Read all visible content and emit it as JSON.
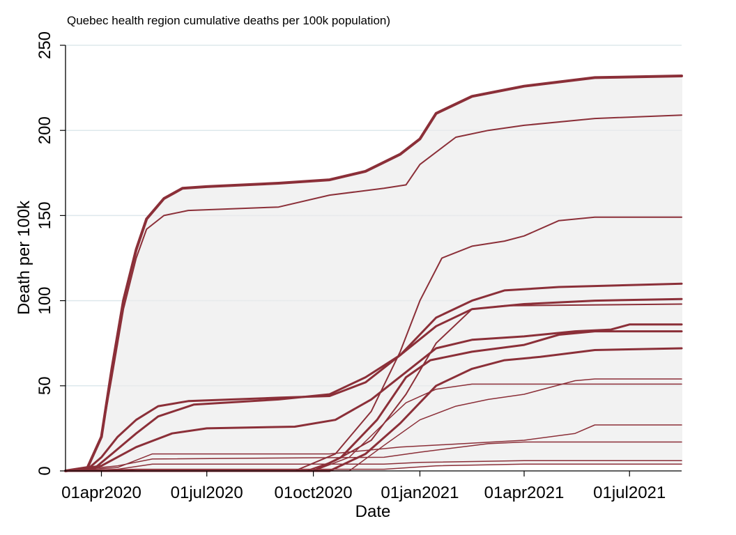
{
  "chart_data": {
    "type": "line",
    "title": "Quebec health region cumulative deaths per 100k population)",
    "xlabel": "Date",
    "ylabel": "Death per 100k",
    "ylim": [
      0,
      250
    ],
    "xlim": [
      "2020-03-01",
      "2021-08-15"
    ],
    "grid": true,
    "legend": "none",
    "colors": {
      "line": "#8b2f38",
      "band": "#ececec",
      "grid": "#dde8ec"
    },
    "y_ticks": [
      0,
      50,
      100,
      150,
      200,
      250
    ],
    "x_ticks": [
      {
        "date": "2020-04-01",
        "label": "01apr2020"
      },
      {
        "date": "2020-07-01",
        "label": "01jul2020"
      },
      {
        "date": "2020-10-01",
        "label": "01oct2020"
      },
      {
        "date": "2021-01-01",
        "label": "01jan2021"
      },
      {
        "date": "2021-04-01",
        "label": "01apr2021"
      },
      {
        "date": "2021-07-01",
        "label": "01jul2021"
      }
    ],
    "series": [
      {
        "weight": 4,
        "values": [
          [
            "2020-03-01",
            0
          ],
          [
            "2020-03-20",
            2
          ],
          [
            "2020-04-01",
            20
          ],
          [
            "2020-04-10",
            60
          ],
          [
            "2020-04-20",
            100
          ],
          [
            "2020-05-01",
            130
          ],
          [
            "2020-05-10",
            148
          ],
          [
            "2020-05-25",
            160
          ],
          [
            "2020-06-10",
            166
          ],
          [
            "2020-07-01",
            167
          ],
          [
            "2020-09-01",
            169
          ],
          [
            "2020-10-15",
            171
          ],
          [
            "2020-11-15",
            176
          ],
          [
            "2020-12-15",
            186
          ],
          [
            "2021-01-01",
            195
          ],
          [
            "2021-01-15",
            210
          ],
          [
            "2021-02-15",
            220
          ],
          [
            "2021-04-01",
            226
          ],
          [
            "2021-06-01",
            231
          ],
          [
            "2021-08-15",
            232
          ]
        ]
      },
      {
        "weight": 2,
        "values": [
          [
            "2020-03-01",
            0
          ],
          [
            "2020-03-20",
            2
          ],
          [
            "2020-04-01",
            20
          ],
          [
            "2020-04-10",
            55
          ],
          [
            "2020-04-20",
            95
          ],
          [
            "2020-05-01",
            125
          ],
          [
            "2020-05-10",
            142
          ],
          [
            "2020-05-25",
            150
          ],
          [
            "2020-06-15",
            153
          ],
          [
            "2020-09-01",
            155
          ],
          [
            "2020-10-15",
            162
          ],
          [
            "2020-12-01",
            166
          ],
          [
            "2020-12-20",
            168
          ],
          [
            "2021-01-01",
            180
          ],
          [
            "2021-02-01",
            196
          ],
          [
            "2021-03-01",
            200
          ],
          [
            "2021-04-01",
            203
          ],
          [
            "2021-06-01",
            207
          ],
          [
            "2021-08-15",
            209
          ]
        ]
      },
      {
        "weight": 2,
        "values": [
          [
            "2020-03-01",
            0
          ],
          [
            "2020-09-15",
            0
          ],
          [
            "2020-10-20",
            10
          ],
          [
            "2020-11-20",
            35
          ],
          [
            "2020-12-15",
            70
          ],
          [
            "2021-01-01",
            100
          ],
          [
            "2021-01-20",
            125
          ],
          [
            "2021-02-15",
            132
          ],
          [
            "2021-03-15",
            135
          ],
          [
            "2021-04-01",
            138
          ],
          [
            "2021-05-01",
            147
          ],
          [
            "2021-06-01",
            149
          ],
          [
            "2021-08-15",
            149
          ]
        ]
      },
      {
        "weight": 3,
        "values": [
          [
            "2020-03-01",
            0
          ],
          [
            "2020-03-20",
            1
          ],
          [
            "2020-04-01",
            8
          ],
          [
            "2020-04-15",
            20
          ],
          [
            "2020-05-01",
            30
          ],
          [
            "2020-05-20",
            38
          ],
          [
            "2020-06-15",
            41
          ],
          [
            "2020-09-01",
            43
          ],
          [
            "2020-10-15",
            44
          ],
          [
            "2020-11-15",
            52
          ],
          [
            "2020-12-15",
            68
          ],
          [
            "2021-01-15",
            90
          ],
          [
            "2021-02-15",
            100
          ],
          [
            "2021-03-15",
            106
          ],
          [
            "2021-05-01",
            108
          ],
          [
            "2021-08-15",
            110
          ]
        ]
      },
      {
        "weight": 3,
        "values": [
          [
            "2020-03-01",
            0
          ],
          [
            "2020-03-25",
            1
          ],
          [
            "2020-04-10",
            10
          ],
          [
            "2020-05-01",
            22
          ],
          [
            "2020-05-20",
            32
          ],
          [
            "2020-06-20",
            39
          ],
          [
            "2020-09-01",
            42
          ],
          [
            "2020-10-15",
            45
          ],
          [
            "2020-11-15",
            55
          ],
          [
            "2020-12-15",
            68
          ],
          [
            "2021-01-15",
            85
          ],
          [
            "2021-02-15",
            95
          ],
          [
            "2021-04-01",
            98
          ],
          [
            "2021-06-01",
            100
          ],
          [
            "2021-08-15",
            101
          ]
        ]
      },
      {
        "weight": 2,
        "values": [
          [
            "2020-03-01",
            0
          ],
          [
            "2020-09-25",
            0
          ],
          [
            "2020-10-20",
            6
          ],
          [
            "2020-11-20",
            18
          ],
          [
            "2020-12-20",
            45
          ],
          [
            "2021-01-15",
            75
          ],
          [
            "2021-02-15",
            95
          ],
          [
            "2021-03-15",
            97
          ],
          [
            "2021-08-15",
            98
          ]
        ]
      },
      {
        "weight": 3,
        "values": [
          [
            "2020-03-01",
            0
          ],
          [
            "2020-04-01",
            3
          ],
          [
            "2020-05-01",
            14
          ],
          [
            "2020-06-01",
            22
          ],
          [
            "2020-07-01",
            25
          ],
          [
            "2020-09-15",
            26
          ],
          [
            "2020-10-20",
            30
          ],
          [
            "2020-11-20",
            42
          ],
          [
            "2020-12-20",
            58
          ],
          [
            "2021-01-15",
            72
          ],
          [
            "2021-02-15",
            77
          ],
          [
            "2021-04-01",
            79
          ],
          [
            "2021-05-15",
            82
          ],
          [
            "2021-06-15",
            83
          ],
          [
            "2021-07-01",
            86
          ],
          [
            "2021-08-15",
            86
          ]
        ]
      },
      {
        "weight": 3,
        "values": [
          [
            "2020-03-01",
            0
          ],
          [
            "2020-10-01",
            0
          ],
          [
            "2020-10-25",
            8
          ],
          [
            "2020-11-25",
            30
          ],
          [
            "2020-12-20",
            55
          ],
          [
            "2021-01-10",
            65
          ],
          [
            "2021-02-15",
            70
          ],
          [
            "2021-04-01",
            74
          ],
          [
            "2021-05-01",
            80
          ],
          [
            "2021-06-01",
            82
          ],
          [
            "2021-08-15",
            82
          ]
        ]
      },
      {
        "weight": 3,
        "values": [
          [
            "2020-03-01",
            0
          ],
          [
            "2020-10-15",
            0
          ],
          [
            "2020-11-15",
            10
          ],
          [
            "2020-12-15",
            28
          ],
          [
            "2021-01-15",
            50
          ],
          [
            "2021-02-15",
            60
          ],
          [
            "2021-03-15",
            65
          ],
          [
            "2021-04-15",
            67
          ],
          [
            "2021-06-01",
            71
          ],
          [
            "2021-08-15",
            72
          ]
        ]
      },
      {
        "weight": 1.5,
        "values": [
          [
            "2020-03-01",
            0
          ],
          [
            "2020-10-01",
            0
          ],
          [
            "2020-11-01",
            8
          ],
          [
            "2020-12-01",
            28
          ],
          [
            "2020-12-20",
            40
          ],
          [
            "2021-01-15",
            48
          ],
          [
            "2021-02-15",
            51
          ],
          [
            "2021-04-01",
            51
          ],
          [
            "2021-08-15",
            51
          ]
        ]
      },
      {
        "weight": 1.5,
        "values": [
          [
            "2020-03-01",
            0
          ],
          [
            "2020-11-01",
            0
          ],
          [
            "2020-12-01",
            15
          ],
          [
            "2021-01-01",
            30
          ],
          [
            "2021-02-01",
            38
          ],
          [
            "2021-03-01",
            42
          ],
          [
            "2021-04-01",
            45
          ],
          [
            "2021-05-15",
            53
          ],
          [
            "2021-06-01",
            54
          ],
          [
            "2021-08-15",
            54
          ]
        ]
      },
      {
        "weight": 1.5,
        "values": [
          [
            "2020-03-01",
            0
          ],
          [
            "2020-04-15",
            2
          ],
          [
            "2020-05-15",
            10
          ],
          [
            "2020-10-15",
            10
          ],
          [
            "2020-12-15",
            14
          ],
          [
            "2021-04-01",
            18
          ],
          [
            "2021-05-15",
            22
          ],
          [
            "2021-06-01",
            27
          ],
          [
            "2021-08-15",
            27
          ]
        ]
      },
      {
        "weight": 1.5,
        "values": [
          [
            "2020-03-01",
            0
          ],
          [
            "2020-04-15",
            3
          ],
          [
            "2020-05-15",
            7
          ],
          [
            "2020-12-01",
            8
          ],
          [
            "2021-01-01",
            11
          ],
          [
            "2021-03-01",
            16
          ],
          [
            "2021-04-01",
            17
          ],
          [
            "2021-08-15",
            17
          ]
        ]
      },
      {
        "weight": 1.5,
        "values": [
          [
            "2020-03-01",
            0
          ],
          [
            "2020-04-15",
            1
          ],
          [
            "2020-05-15",
            4
          ],
          [
            "2020-12-01",
            4
          ],
          [
            "2021-01-01",
            5
          ],
          [
            "2021-04-01",
            6
          ],
          [
            "2021-08-15",
            6
          ]
        ]
      },
      {
        "weight": 1.5,
        "values": [
          [
            "2020-03-01",
            0
          ],
          [
            "2020-05-01",
            1
          ],
          [
            "2020-12-01",
            1
          ],
          [
            "2021-01-15",
            3
          ],
          [
            "2021-04-01",
            4
          ],
          [
            "2021-08-15",
            4
          ]
        ]
      }
    ]
  }
}
